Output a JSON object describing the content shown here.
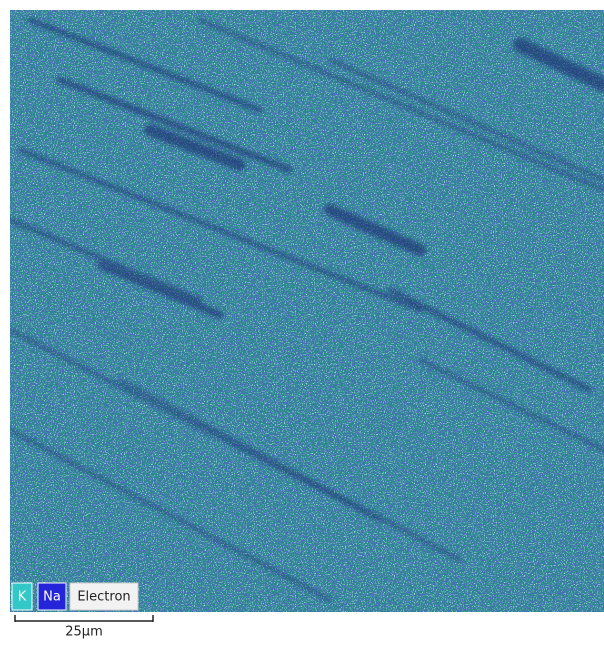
{
  "legend": {
    "items": [
      "K",
      "Na",
      "Electron"
    ]
  },
  "scale_bar": {
    "label": "25µm"
  }
}
